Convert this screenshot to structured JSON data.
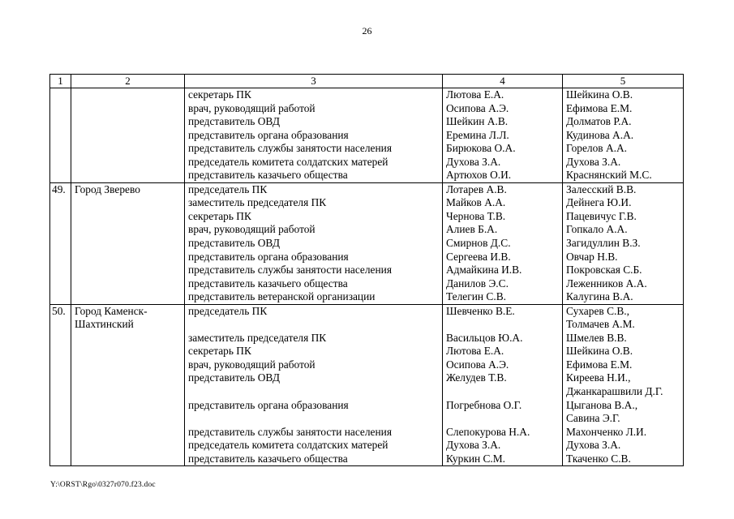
{
  "page": {
    "number": "26",
    "footer": "Y:\\ORST\\Rgo\\0327r070.f23.doc"
  },
  "table": {
    "headers": [
      "1",
      "2",
      "3",
      "4",
      "5"
    ],
    "sections": [
      {
        "num": "",
        "city": "",
        "positions": [
          "секретарь ПК",
          "врач, руководящий работой",
          "представитель ОВД",
          "представитель органа образования",
          "представитель службы занятости населения",
          "председатель комитета солдатских матерей",
          "представитель казачьего общества"
        ],
        "col4_names": [
          "Лютова Е.А.",
          "Осипова А.Э.",
          "Шейкин А.В.",
          "Еремина Л.Л.",
          "Бирюкова О.А.",
          "Духова З.А.",
          "Артюхов О.И."
        ],
        "col5_names": [
          "Шейкина О.В.",
          "Ефимова Е.М.",
          "Долматов Р.А.",
          "Кудинова А.А.",
          "Горелов А.А.",
          "Духова З.А.",
          "Краснянский М.С."
        ]
      },
      {
        "num": "49.",
        "city": "Город Зверево",
        "positions": [
          "председатель ПК",
          "заместитель председателя ПК",
          "секретарь ПК",
          "врач, руководящий работой",
          "представитель ОВД",
          "представитель органа образования",
          "представитель службы занятости населения",
          "представитель казачьего общества",
          "представитель ветеранской организации"
        ],
        "col4_names": [
          "Лотарев А.В.",
          "Майков А.А.",
          "Чернова Т.В.",
          "Алиев Б.А.",
          "Смирнов Д.С.",
          "Сергеева И.В.",
          "Адмайкина И.В.",
          "Данилов Э.С.",
          "Телегин С.В."
        ],
        "col5_names": [
          "Залесский В.В.",
          "Дейнега Ю.И.",
          "Пацевичус Г.В.",
          "Гопкало А.А.",
          "Загидуллин В.З.",
          "Овчар Н.В.",
          "Покровская С.Б.",
          "Леженников А.А.",
          "Калугина В.А."
        ]
      },
      {
        "num": "50.",
        "city": "Город Каменск-Шахтинский",
        "positions": [
          "председатель ПК",
          "",
          "заместитель председателя ПК",
          "секретарь ПК",
          "врач, руководящий работой",
          "представитель ОВД",
          "",
          "представитель органа образования",
          "",
          "представитель службы занятости населения",
          "председатель комитета солдатских матерей",
          "представитель казачьего общества"
        ],
        "col4_names": [
          "Шевченко В.Е.",
          "",
          "Васильцов Ю.А.",
          "Лютова Е.А.",
          "Осипова А.Э.",
          "Желудев Т.В.",
          "",
          "Погребнова О.Г.",
          "",
          "Слепокурова Н.А.",
          "Духова З.А.",
          "Куркин С.М."
        ],
        "col5_names": [
          "Сухарев С.В.,",
          "Толмачев А.М.",
          "Шмелев В.В.",
          "Шейкина О.В.",
          "Ефимова Е.М.",
          "Киреева Н.И.,",
          "Джанкарашвили Д.Г.",
          "Цыганова В.А.,",
          "Савина Э.Г.",
          "Махонченко Л.И.",
          "Духова З.А.",
          "Ткаченко С.В."
        ]
      }
    ]
  }
}
